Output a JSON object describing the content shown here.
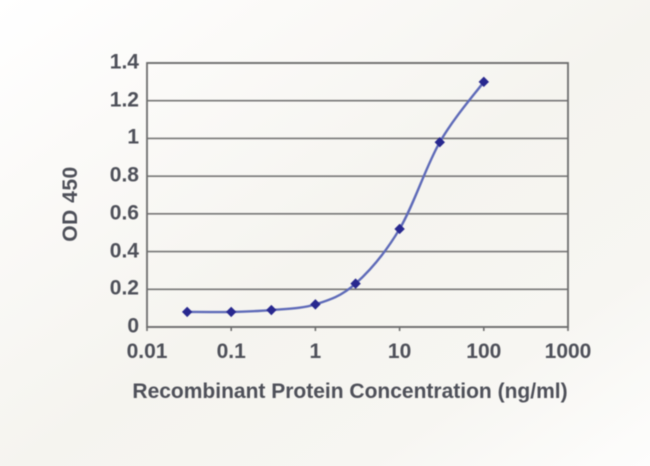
{
  "chart_data": {
    "type": "line",
    "title": "",
    "xlabel": "Recombinant Protein Concentration (ng/ml)",
    "ylabel": "OD 450",
    "x_scale": "log",
    "xlim": [
      0.01,
      1000
    ],
    "ylim": [
      0,
      1.4
    ],
    "x_ticks": [
      0.01,
      0.1,
      1,
      10,
      100,
      1000
    ],
    "y_ticks": [
      0,
      0.2,
      0.4,
      0.6,
      0.8,
      1,
      1.2,
      1.4
    ],
    "grid": "horizontal",
    "legend": "none",
    "series": [
      {
        "name": "OD 450",
        "marker": "diamond",
        "x": [
          0.03,
          0.1,
          0.3,
          1,
          3,
          10,
          30,
          100
        ],
        "y": [
          0.08,
          0.08,
          0.09,
          0.12,
          0.23,
          0.52,
          0.98,
          1.3
        ]
      }
    ],
    "colors": {
      "line": "#5e6ab8",
      "marker": "#28288f",
      "grid": "#767676",
      "axis": "#6e6e6e",
      "text": "#4e5059",
      "plot_background": "#f6f5f1"
    }
  }
}
